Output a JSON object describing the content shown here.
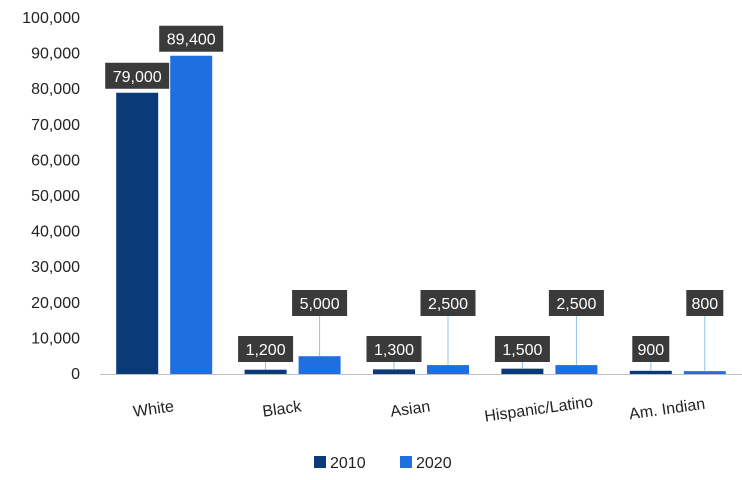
{
  "chart_data": {
    "type": "bar",
    "categories": [
      "White",
      "Black",
      "Asian",
      "Hispanic/Latino",
      "Am. Indian"
    ],
    "series": [
      {
        "name": "2010",
        "values": [
          79000,
          1200,
          1300,
          1500,
          900
        ],
        "color": "#0b3a78",
        "labels": [
          "79,000",
          "1,200",
          "1,300",
          "1,500",
          "900"
        ]
      },
      {
        "name": "2020",
        "values": [
          89400,
          5000,
          2500,
          2500,
          800
        ],
        "color": "#1f6fe0",
        "labels": [
          "89,400",
          "5,000",
          "2,500",
          "2,500",
          "800"
        ]
      }
    ],
    "title": "",
    "xlabel": "",
    "ylabel": "",
    "ylim": [
      0,
      100000
    ],
    "yticks": [
      0,
      10000,
      20000,
      30000,
      40000,
      50000,
      60000,
      70000,
      80000,
      90000,
      100000
    ],
    "ytick_labels": [
      "0",
      "10,000",
      "20,000",
      "30,000",
      "40,000",
      "50,000",
      "60,000",
      "70,000",
      "80,000",
      "90,000",
      "100,000"
    ],
    "grid": false,
    "legend_position": "bottom",
    "data_label_style": "dark-box",
    "data_label_color": "#3a3a3a",
    "leader_line_color": "#8fc0e8",
    "category_label_rotation_deg": -8
  }
}
